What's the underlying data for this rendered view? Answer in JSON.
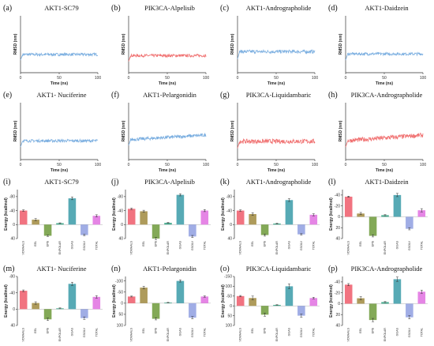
{
  "chart_data": [
    {
      "type": "line",
      "panel": "(a)",
      "title": "AKT1-SC79",
      "xlabel": "Time (ns)",
      "ylabel": "RMSD (nm)",
      "xticks": [
        "0",
        "50",
        "100"
      ],
      "xlim": [
        0,
        100
      ],
      "ylim": [
        0,
        1.0
      ],
      "series": [
        {
          "color": "#7aaee0",
          "mean": 0.32,
          "noise": 0.025,
          "start": 0.22
        }
      ]
    },
    {
      "type": "line",
      "panel": "(b)",
      "title": "PIK3CA-Alpelisib",
      "xlabel": "Time (ns)",
      "ylabel": "RMSD (nm)",
      "xticks": [
        "0",
        "50",
        "100"
      ],
      "xlim": [
        0,
        100
      ],
      "ylim": [
        0,
        1.0
      ],
      "series": [
        {
          "color": "#f07070",
          "mean": 0.3,
          "noise": 0.025,
          "start": 0.2
        }
      ]
    },
    {
      "type": "line",
      "panel": "(c)",
      "title": "AKT1-Andrographolide",
      "xlabel": "Time (ns)",
      "ylabel": "RMSD (nm)",
      "xticks": [
        "0",
        "50",
        "100"
      ],
      "xlim": [
        0,
        100
      ],
      "ylim": [
        0,
        1.0
      ],
      "series": [
        {
          "color": "#7aaee0",
          "mean": 0.37,
          "noise": 0.03,
          "start": 0.24
        }
      ]
    },
    {
      "type": "line",
      "panel": "(d)",
      "title": "AKT1-Daidzein",
      "xlabel": "Time (ns)",
      "ylabel": "RMSD (nm)",
      "xticks": [
        "0",
        "50",
        "100"
      ],
      "xlim": [
        0,
        100
      ],
      "ylim": [
        0,
        1.0
      ],
      "series": [
        {
          "color": "#7aaee0",
          "mean": 0.33,
          "noise": 0.025,
          "start": 0.22
        }
      ]
    },
    {
      "type": "line",
      "panel": "(e)",
      "title": "AKT1- Nuciferine",
      "xlabel": "Time (ns)",
      "ylabel": "RMSD (nm)",
      "xticks": [
        "0",
        "50",
        "100"
      ],
      "xlim": [
        0,
        100
      ],
      "ylim": [
        0,
        1.0
      ],
      "series": [
        {
          "color": "#7aaee0",
          "mean": 0.33,
          "noise": 0.025,
          "start": 0.22
        }
      ]
    },
    {
      "type": "line",
      "panel": "(f)",
      "title": "AKT1-Pelargonidin",
      "xlabel": "Time (ns)",
      "ylabel": "RMSD (nm)",
      "xticks": [
        "0",
        "50",
        "100"
      ],
      "xlim": [
        0,
        100
      ],
      "ylim": [
        0,
        1.0
      ],
      "series": [
        {
          "color": "#7aaee0",
          "mean": 0.43,
          "noise": 0.03,
          "start": 0.25,
          "trend": 0.08
        }
      ]
    },
    {
      "type": "line",
      "panel": "(g)",
      "title": "PIK3CA-Liquidambaric",
      "xlabel": "Time (ns)",
      "ylabel": "RMSD (nm)",
      "xticks": [
        "0",
        "50",
        "100"
      ],
      "xlim": [
        0,
        100
      ],
      "ylim": [
        0,
        1.0
      ],
      "series": [
        {
          "color": "#f07070",
          "mean": 0.32,
          "noise": 0.04,
          "start": 0.2
        }
      ]
    },
    {
      "type": "line",
      "panel": "(h)",
      "title": "PIK3CA-Andrographolide",
      "xlabel": "Time (ns)",
      "ylabel": "RMSD (nm)",
      "xticks": [
        "0",
        "50",
        "100"
      ],
      "xlim": [
        0,
        100
      ],
      "ylim": [
        0,
        1.0
      ],
      "series": [
        {
          "color": "#f07070",
          "mean": 0.43,
          "noise": 0.04,
          "start": 0.22,
          "trend": 0.1
        }
      ]
    },
    {
      "type": "bar",
      "panel": "(i)",
      "title": "AKT1-SC79",
      "ylabel": "Energy (kcal/mol)",
      "categories": [
        "VDWAALS",
        "EEL",
        "EPB",
        "ENPOLAR",
        "GGAS",
        "GSOLV",
        "TOTAL"
      ],
      "values": [
        -40,
        -14,
        32,
        -4,
        -75,
        30,
        -25
      ],
      "errors": [
        2,
        3,
        2,
        1,
        4,
        2,
        3
      ],
      "colors": [
        "#ee5a6a",
        "#a08a3e",
        "#6d9a3a",
        "#2fa080",
        "#3a9ba8",
        "#8f9fe0",
        "#e070e0"
      ],
      "yticks": [
        "-80",
        "-40",
        "0",
        "40"
      ],
      "ylim": [
        -100,
        40
      ]
    },
    {
      "type": "bar",
      "panel": "(j)",
      "title": "PIK3CA-Alpelisib",
      "ylabel": "Energy (kcal/mol)",
      "categories": [
        "VDWAALS",
        "EEL",
        "EPB",
        "ENPOLAR",
        "GGAS",
        "GSOLV",
        "TOTAL"
      ],
      "values": [
        -45,
        -38,
        40,
        -5,
        -85,
        34,
        -40
      ],
      "errors": [
        2,
        3,
        3,
        1,
        3,
        3,
        3
      ],
      "colors": [
        "#ee5a6a",
        "#a08a3e",
        "#6d9a3a",
        "#2fa080",
        "#3a9ba8",
        "#8f9fe0",
        "#e070e0"
      ],
      "yticks": [
        "-80",
        "-40",
        "0",
        "40"
      ],
      "ylim": [
        -100,
        40
      ]
    },
    {
      "type": "bar",
      "panel": "(k)",
      "title": "AKT1-Andrographolide",
      "ylabel": "Energy (kcal/mol)",
      "categories": [
        "VDWAALS",
        "EEL",
        "EPB",
        "ENPOLAR",
        "GGAS",
        "GSOLV",
        "TOTAL"
      ],
      "values": [
        -40,
        -30,
        30,
        -3,
        -70,
        28,
        -28
      ],
      "errors": [
        2,
        4,
        3,
        1,
        4,
        2,
        3
      ],
      "colors": [
        "#ee5a6a",
        "#a08a3e",
        "#6d9a3a",
        "#2fa080",
        "#3a9ba8",
        "#8f9fe0",
        "#e070e0"
      ],
      "yticks": [
        "-80",
        "-40",
        "0",
        "40"
      ],
      "ylim": [
        -100,
        40
      ]
    },
    {
      "type": "bar",
      "panel": "(l)",
      "title": "AKT1-Daidzein",
      "ylabel": "Energy (kcal/mol)",
      "categories": [
        "VDWAALS",
        "EEL",
        "EPB",
        "ENPOLAR",
        "GGAS",
        "GSOLV",
        "TOTAL"
      ],
      "values": [
        -37,
        -6,
        35,
        -3,
        -40,
        22,
        -12
      ],
      "errors": [
        1,
        2,
        2,
        1,
        3,
        2,
        3
      ],
      "colors": [
        "#ee5a6a",
        "#a08a3e",
        "#6d9a3a",
        "#2fa080",
        "#3a9ba8",
        "#8f9fe0",
        "#e070e0"
      ],
      "yticks": [
        "-40",
        "-20",
        "0",
        "20",
        "40"
      ],
      "ylim": [
        -50,
        40
      ]
    },
    {
      "type": "bar",
      "panel": "(m)",
      "title": "AKT1- Nuciferine",
      "ylabel": "Energy (kcal/mol)",
      "categories": [
        "VDWAALS",
        "EEL",
        "EPB",
        "ENPOLAR",
        "GGAS",
        "GSOLV",
        "TOTAL"
      ],
      "values": [
        -45,
        -15,
        25,
        -2,
        -62,
        22,
        -30
      ],
      "errors": [
        2,
        3,
        3,
        1,
        4,
        3,
        3
      ],
      "colors": [
        "#ee5a6a",
        "#a08a3e",
        "#6d9a3a",
        "#2fa080",
        "#3a9ba8",
        "#8f9fe0",
        "#e070e0"
      ],
      "yticks": [
        "-80",
        "-40",
        "0",
        "40"
      ],
      "ylim": [
        -80,
        40
      ]
    },
    {
      "type": "bar",
      "panel": "(n)",
      "title": "AKT1-Pelargonidin",
      "ylabel": "Energy (kcal/mol)",
      "categories": [
        "VDWAALS",
        "EEL",
        "EPB",
        "ENPOLAR",
        "GGAS",
        "GSOLV",
        "TOTAL"
      ],
      "values": [
        -30,
        -70,
        70,
        -3,
        -100,
        65,
        -30
      ],
      "errors": [
        2,
        6,
        5,
        1,
        5,
        5,
        3
      ],
      "colors": [
        "#ee5a6a",
        "#a08a3e",
        "#6d9a3a",
        "#2fa080",
        "#3a9ba8",
        "#8f9fe0",
        "#e070e0"
      ],
      "yticks": [
        "-100",
        "-50",
        "0",
        "50",
        "100"
      ],
      "ylim": [
        -120,
        100
      ]
    },
    {
      "type": "bar",
      "panel": "(o)",
      "title": "PIK3CA-Liquidambaric",
      "ylabel": "Energy (kcal/mol)",
      "categories": [
        "VDWAALS",
        "EEL",
        "EPB",
        "ENPOLAR",
        "GGAS",
        "GSOLV",
        "TOTAL"
      ],
      "values": [
        -50,
        -40,
        45,
        -5,
        -100,
        50,
        -40
      ],
      "errors": [
        3,
        10,
        8,
        1,
        12,
        8,
        4
      ],
      "colors": [
        "#ee5a6a",
        "#a08a3e",
        "#6d9a3a",
        "#2fa080",
        "#3a9ba8",
        "#8f9fe0",
        "#e070e0"
      ],
      "yticks": [
        "-150",
        "-100",
        "-50",
        "0",
        "50",
        "100"
      ],
      "ylim": [
        -150,
        100
      ]
    },
    {
      "type": "bar",
      "panel": "(p)",
      "title": "PIK3CA-Andrographolide",
      "ylabel": "Energy (kcal/mol)",
      "categories": [
        "VDWAALS",
        "EEL",
        "EPB",
        "ENPOLAR",
        "GGAS",
        "GSOLV",
        "TOTAL"
      ],
      "values": [
        -35,
        -10,
        30,
        -3,
        -45,
        25,
        -22
      ],
      "errors": [
        2,
        3,
        3,
        1,
        4,
        3,
        3
      ],
      "colors": [
        "#ee5a6a",
        "#a08a3e",
        "#6d9a3a",
        "#2fa080",
        "#3a9ba8",
        "#8f9fe0",
        "#e070e0"
      ],
      "yticks": [
        "-40",
        "-20",
        "0",
        "20",
        "40"
      ],
      "ylim": [
        -50,
        40
      ]
    }
  ]
}
